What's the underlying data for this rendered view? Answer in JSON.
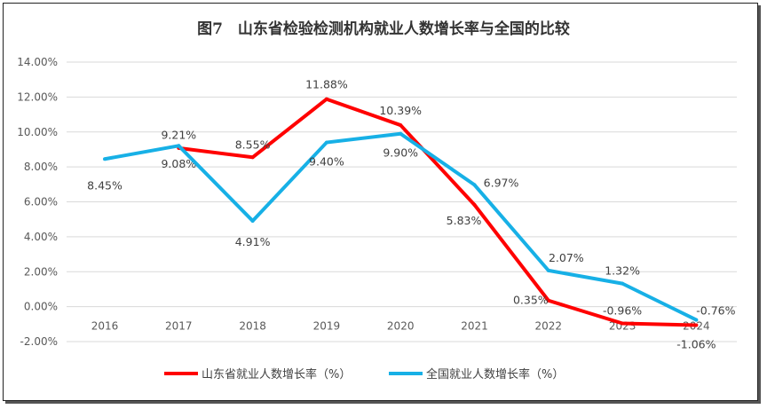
{
  "chart_data": {
    "type": "line",
    "title": "图7　山东省检验检测机构就业人数增长率与全国的比较",
    "categories": [
      "2016",
      "2017",
      "2018",
      "2019",
      "2020",
      "2021",
      "2022",
      "2023",
      "2024"
    ],
    "ylim": [
      -2,
      14
    ],
    "yticks": [
      "-2.00%",
      "0.00%",
      "2.00%",
      "4.00%",
      "6.00%",
      "8.00%",
      "10.00%",
      "12.00%",
      "14.00%"
    ],
    "grid": true,
    "legend_position": "bottom",
    "series": [
      {
        "name": "山东省就业人数增长率（%）",
        "color": "#ff0000",
        "values": [
          null,
          9.08,
          8.55,
          11.88,
          10.39,
          5.83,
          0.35,
          -0.96,
          -1.06
        ],
        "labels": [
          "",
          "9.08%",
          "8.55%",
          "11.88%",
          "10.39%",
          "5.83%",
          "0.35%",
          "-0.96%",
          "-1.06%"
        ]
      },
      {
        "name": "全国就业人数增长率（%）",
        "color": "#17b0e6",
        "values": [
          8.45,
          9.21,
          4.91,
          9.4,
          9.9,
          6.97,
          2.07,
          1.32,
          -0.76
        ],
        "labels": [
          "8.45%",
          "9.21%",
          "4.91%",
          "9.40%",
          "9.90%",
          "6.97%",
          "2.07%",
          "1.32%",
          "-0.76%"
        ]
      }
    ]
  }
}
